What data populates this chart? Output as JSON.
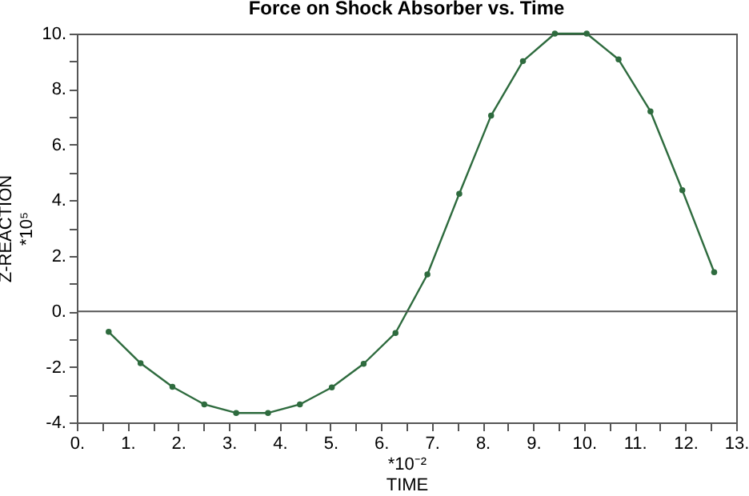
{
  "chart_data": {
    "type": "line",
    "title": "Force on Shock Absorber vs. Time",
    "xlabel": "TIME",
    "ylabel": "Z-REACTION",
    "annotations": [
      "*10⁵",
      "*10⁻²"
    ],
    "x": [
      0.628,
      1.257,
      1.885,
      2.513,
      3.142,
      3.77,
      4.398,
      5.027,
      5.655,
      6.283,
      6.912,
      7.54,
      8.168,
      8.796,
      9.425,
      10.053,
      10.681,
      11.31,
      11.938,
      12.566
    ],
    "series": [
      {
        "color": "#2e6b3e",
        "values": [
          -0.74,
          -1.87,
          -2.72,
          -3.35,
          -3.66,
          -3.66,
          -3.35,
          -2.74,
          -1.89,
          -0.78,
          1.33,
          4.23,
          7.05,
          9.01,
          10,
          10,
          9.07,
          7.2,
          4.36,
          1.41
        ]
      }
    ],
    "xlim": [
      0,
      13
    ],
    "ylim": [
      -4,
      10
    ],
    "xticks": [
      {
        "value": 0,
        "label": "0."
      },
      {
        "value": 0.5,
        "label": null
      },
      {
        "value": 1,
        "label": "1."
      },
      {
        "value": 1.5,
        "label": null
      },
      {
        "value": 2,
        "label": "2."
      },
      {
        "value": 2.5,
        "label": null
      },
      {
        "value": 3,
        "label": "3."
      },
      {
        "value": 3.5,
        "label": null
      },
      {
        "value": 4,
        "label": "4."
      },
      {
        "value": 4.5,
        "label": null
      },
      {
        "value": 5,
        "label": "5."
      },
      {
        "value": 5.5,
        "label": null
      },
      {
        "value": 6,
        "label": "6."
      },
      {
        "value": 6.5,
        "label": null
      },
      {
        "value": 7,
        "label": "7."
      },
      {
        "value": 7.5,
        "label": null
      },
      {
        "value": 8,
        "label": "8."
      },
      {
        "value": 8.5,
        "label": null
      },
      {
        "value": 9,
        "label": "9."
      },
      {
        "value": 9.5,
        "label": null
      },
      {
        "value": 10,
        "label": "10."
      },
      {
        "value": 10.5,
        "label": null
      },
      {
        "value": 11,
        "label": "11."
      },
      {
        "value": 11.5,
        "label": null
      },
      {
        "value": 12,
        "label": "12."
      },
      {
        "value": 12.5,
        "label": null
      },
      {
        "value": 13,
        "label": "13."
      }
    ],
    "yticks": [
      {
        "value": -4,
        "label": "-4."
      },
      {
        "value": -3,
        "label": null
      },
      {
        "value": -2,
        "label": "-2."
      },
      {
        "value": -1,
        "label": null
      },
      {
        "value": 0,
        "label": "0."
      },
      {
        "value": 1,
        "label": null
      },
      {
        "value": 2,
        "label": "2."
      },
      {
        "value": 3,
        "label": null
      },
      {
        "value": 4,
        "label": "4."
      },
      {
        "value": 5,
        "label": null
      },
      {
        "value": 6,
        "label": "6."
      },
      {
        "value": 7,
        "label": null
      },
      {
        "value": 8,
        "label": "8."
      },
      {
        "value": 9,
        "label": null
      },
      {
        "value": 10,
        "label": "10."
      }
    ],
    "ref_lines": [
      {
        "axis": "y",
        "value": 0,
        "color": "#555555"
      }
    ],
    "marker": "circle",
    "line_style": "solid",
    "grid": false
  }
}
